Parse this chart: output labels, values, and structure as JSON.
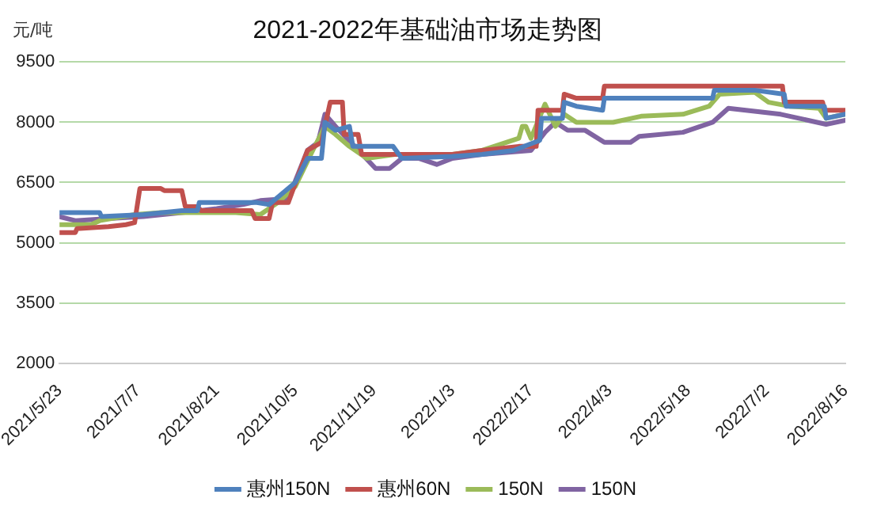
{
  "chart_data": {
    "type": "line",
    "title": "2021-2022年基础油市场走势图",
    "ylabel": "元/吨",
    "xlim": [
      "2021-05-23",
      "2022-08-16"
    ],
    "xticks": [
      {
        "value": "2021-05-23",
        "label": "2021/5/23"
      },
      {
        "value": "2021-07-07",
        "label": "2021/7/7"
      },
      {
        "value": "2021-08-21",
        "label": "2021/8/21"
      },
      {
        "value": "2021-10-05",
        "label": "2021/10/5"
      },
      {
        "value": "2021-11-19",
        "label": "2021/11/19"
      },
      {
        "value": "2022-01-03",
        "label": "2022/1/3"
      },
      {
        "value": "2022-02-17",
        "label": "2022/2/17"
      },
      {
        "value": "2022-04-03",
        "label": "2022/4/3"
      },
      {
        "value": "2022-05-18",
        "label": "2022/5/18"
      },
      {
        "value": "2022-07-02",
        "label": "2022/7/2"
      },
      {
        "value": "2022-08-16",
        "label": "2022/8/16"
      }
    ],
    "ylim": [
      2000,
      9500
    ],
    "yticks": [
      2000,
      3500,
      5000,
      6500,
      8000,
      9500
    ],
    "grid": "y",
    "legend": "bottom",
    "marker": "none",
    "line_style": "solid",
    "series": [
      {
        "name": "惠州150N",
        "color": "#4f81bd",
        "x": [
          "2021-05-23",
          "2021-06-15",
          "2021-06-16",
          "2021-07-10",
          "2021-08-01",
          "2021-08-10",
          "2021-08-11",
          "2021-09-13",
          "2021-09-20",
          "2021-10-05",
          "2021-10-12",
          "2021-10-20",
          "2021-10-22",
          "2021-10-28",
          "2021-11-05",
          "2021-11-07",
          "2021-11-30",
          "2021-12-05",
          "2022-01-03",
          "2022-01-20",
          "2022-02-07",
          "2022-02-22",
          "2022-02-23",
          "2022-03-07",
          "2022-03-08",
          "2022-03-15",
          "2022-03-30",
          "2022-03-31",
          "2022-06-01",
          "2022-06-02",
          "2022-06-25",
          "2022-07-12",
          "2022-07-13",
          "2022-08-04",
          "2022-08-05",
          "2022-08-16"
        ],
        "values": [
          5750,
          5750,
          5650,
          5700,
          5800,
          5800,
          6000,
          6000,
          5950,
          6500,
          7100,
          7100,
          8000,
          7800,
          7900,
          7400,
          7400,
          7100,
          7150,
          7200,
          7300,
          7550,
          8100,
          8100,
          8500,
          8400,
          8300,
          8600,
          8600,
          8800,
          8800,
          8700,
          8400,
          8400,
          8100,
          8200
        ]
      },
      {
        "name": "惠州60N",
        "color": "#c0504d",
        "x": [
          "2021-05-23",
          "2021-06-01",
          "2021-06-02",
          "2021-06-20",
          "2021-06-30",
          "2021-07-05",
          "2021-07-08",
          "2021-07-20",
          "2021-07-22",
          "2021-08-01",
          "2021-08-03",
          "2021-08-10",
          "2021-08-12",
          "2021-09-10",
          "2021-09-12",
          "2021-09-20",
          "2021-09-22",
          "2021-10-01",
          "2021-10-12",
          "2021-10-20",
          "2021-10-25",
          "2021-11-01",
          "2021-11-02",
          "2021-11-10",
          "2021-11-12",
          "2022-01-03",
          "2022-01-20",
          "2022-02-10",
          "2022-02-20",
          "2022-02-21",
          "2022-03-07",
          "2022-03-08",
          "2022-03-15",
          "2022-03-30",
          "2022-03-31",
          "2022-07-11",
          "2022-07-12",
          "2022-08-03",
          "2022-08-04",
          "2022-08-16"
        ],
        "values": [
          5250,
          5250,
          5350,
          5400,
          5450,
          5500,
          6350,
          6350,
          6300,
          6300,
          5900,
          5900,
          5800,
          5800,
          5600,
          5600,
          6000,
          6000,
          7300,
          7500,
          8500,
          8500,
          7700,
          7700,
          7200,
          7200,
          7300,
          7400,
          7400,
          8300,
          8300,
          8700,
          8600,
          8600,
          8900,
          8900,
          8500,
          8500,
          8300,
          8300
        ]
      },
      {
        "name": "150N",
        "color": "#9bbb59",
        "x": [
          "2021-05-23",
          "2021-06-10",
          "2021-06-15",
          "2021-07-05",
          "2021-07-20",
          "2021-09-01",
          "2021-09-15",
          "2021-09-25",
          "2021-10-05",
          "2021-10-15",
          "2021-10-22",
          "2021-10-28",
          "2021-11-05",
          "2021-11-15",
          "2021-12-01",
          "2022-01-03",
          "2022-01-20",
          "2022-02-10",
          "2022-02-12",
          "2022-02-14",
          "2022-02-17",
          "2022-02-25",
          "2022-03-03",
          "2022-03-08",
          "2022-03-15",
          "2022-04-05",
          "2022-04-21",
          "2022-05-15",
          "2022-05-30",
          "2022-06-05",
          "2022-06-25",
          "2022-07-03",
          "2022-07-15",
          "2022-08-01",
          "2022-08-05",
          "2022-08-16"
        ],
        "values": [
          5450,
          5450,
          5550,
          5700,
          5750,
          5750,
          5700,
          6000,
          6400,
          7300,
          7900,
          7700,
          7400,
          7100,
          7200,
          7200,
          7300,
          7600,
          7900,
          7900,
          7600,
          8450,
          7900,
          8200,
          8000,
          8000,
          8150,
          8200,
          8400,
          8700,
          8750,
          8500,
          8400,
          8350,
          8100,
          8200
        ]
      },
      {
        "name": "150N",
        "color": "#8064a2",
        "x": [
          "2021-05-23",
          "2021-06-01",
          "2021-06-20",
          "2021-07-10",
          "2021-08-01",
          "2021-08-21",
          "2021-09-05",
          "2021-09-15",
          "2021-10-01",
          "2021-10-12",
          "2021-10-18",
          "2021-10-22",
          "2021-10-28",
          "2021-11-08",
          "2021-11-20",
          "2021-11-28",
          "2021-12-05",
          "2021-12-15",
          "2021-12-25",
          "2022-01-03",
          "2022-01-20",
          "2022-02-17",
          "2022-02-25",
          "2022-03-03",
          "2022-03-10",
          "2022-03-20",
          "2022-03-31",
          "2022-04-15",
          "2022-04-20",
          "2022-05-15",
          "2022-06-01",
          "2022-06-10",
          "2022-07-10",
          "2022-08-05",
          "2022-08-16"
        ],
        "values": [
          5650,
          5550,
          5600,
          5650,
          5750,
          5850,
          5950,
          6050,
          6100,
          7300,
          7500,
          8200,
          7900,
          7400,
          6850,
          6850,
          7100,
          7100,
          6950,
          7100,
          7200,
          7300,
          7750,
          8000,
          7800,
          7800,
          7500,
          7500,
          7650,
          7750,
          8000,
          8350,
          8200,
          7950,
          8050
        ]
      }
    ]
  }
}
